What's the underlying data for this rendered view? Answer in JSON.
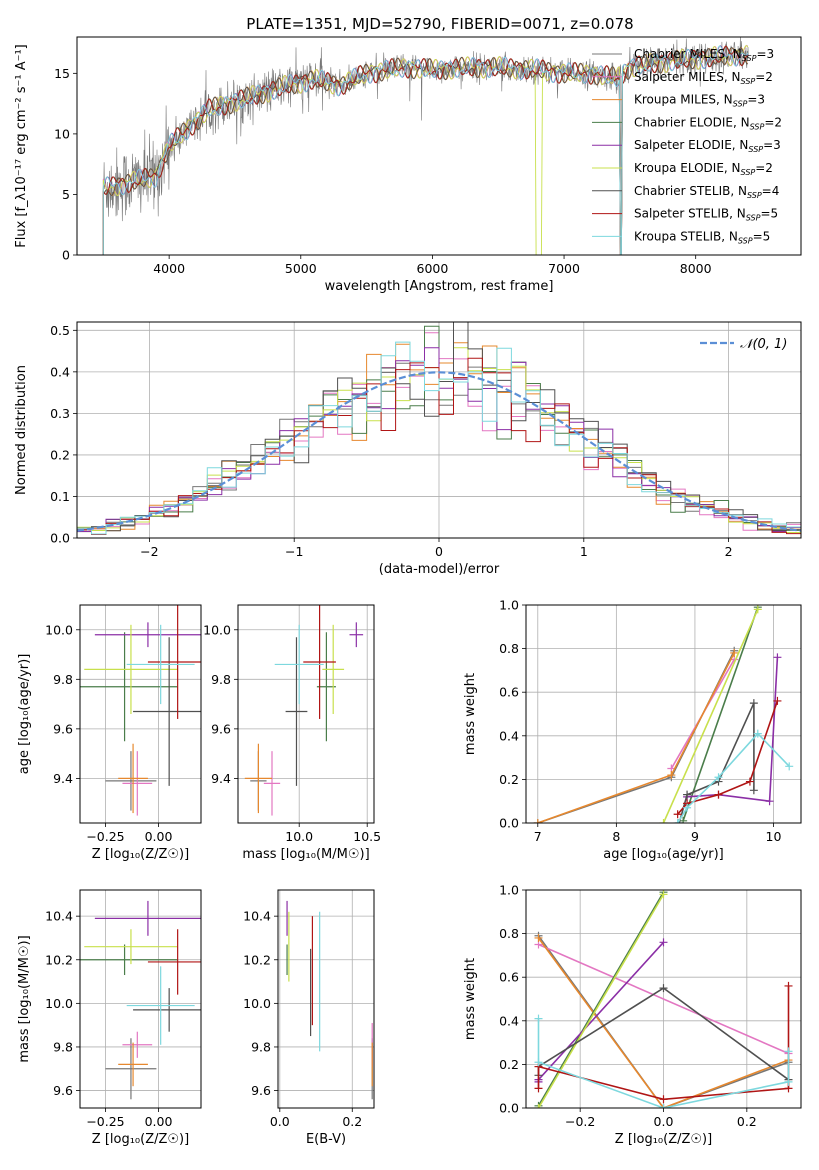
{
  "title": "PLATE=1351, MJD=52790, FIBERID=0071, z=0.078",
  "colors": [
    "#777777",
    "#e377c2",
    "#e6882e",
    "#4a7d4a",
    "#8b2fa6",
    "#c8e04c",
    "#505050",
    "#b01515",
    "#7dd8de"
  ],
  "chart_data": [
    {
      "type": "line",
      "id": "spectrum",
      "xlabel": "wavelength [Angstrom, rest frame]",
      "ylabel": "Flux [f_λ10⁻¹⁷ erg cm⁻² s⁻¹ A⁻¹]",
      "xlim": [
        3300,
        8800
      ],
      "ylim": [
        0,
        18
      ],
      "xticks": [
        "4000",
        "5000",
        "6000",
        "7000",
        "8000"
      ],
      "xtick_values": [
        4000,
        5000,
        6000,
        7000,
        8000
      ],
      "yticks": [
        "0",
        "5",
        "10",
        "15"
      ],
      "ytick_values": [
        0,
        5,
        10,
        15
      ],
      "grid": false,
      "legend": "upper-right",
      "series": [
        {
          "name": "Chabrier MILES, N_SSP=3"
        },
        {
          "name": "Salpeter MILES, N_SSP=2"
        },
        {
          "name": "Kroupa MILES, N_SSP=3"
        },
        {
          "name": "Chabrier ELODIE, N_SSP=2"
        },
        {
          "name": "Salpeter ELODIE, N_SSP=3"
        },
        {
          "name": "Kroupa ELODIE, N_SSP=2"
        },
        {
          "name": "Chabrier STELIB, N_SSP=4"
        },
        {
          "name": "Salpeter STELIB, N_SSP=5"
        },
        {
          "name": "Kroupa STELIB, N_SSP=5"
        }
      ],
      "legend_labels": [
        [
          "Chabrier MILES, N",
          "SSP",
          "=3"
        ],
        [
          "Salpeter MILES, N",
          "SSP",
          "=2"
        ],
        [
          "Kroupa MILES, N",
          "SSP",
          "=3"
        ],
        [
          "Chabrier ELODIE, N",
          "SSP",
          "=2"
        ],
        [
          "Salpeter ELODIE, N",
          "SSP",
          "=3"
        ],
        [
          "Kroupa ELODIE, N",
          "SSP",
          "=2"
        ],
        [
          "Chabrier STELIB, N",
          "SSP",
          "=4"
        ],
        [
          "Salpeter STELIB, N",
          "SSP",
          "=5"
        ],
        [
          "Kroupa STELIB, N",
          "SSP",
          "=5"
        ]
      ],
      "continuum_knots": [
        [
          3500,
          5.5
        ],
        [
          3700,
          6.0
        ],
        [
          3900,
          6.5
        ],
        [
          4000,
          9.0
        ],
        [
          4300,
          12.0
        ],
        [
          4600,
          13.0
        ],
        [
          4900,
          14.0
        ],
        [
          5100,
          14.5
        ],
        [
          5300,
          14.0
        ],
        [
          5500,
          15.0
        ],
        [
          5800,
          15.5
        ],
        [
          6000,
          15.3
        ],
        [
          6300,
          15.5
        ],
        [
          6500,
          15.5
        ],
        [
          6800,
          15.3
        ],
        [
          7000,
          15.0
        ],
        [
          7200,
          15.0
        ],
        [
          7400,
          14.6
        ],
        [
          7500,
          15.5
        ],
        [
          7800,
          16.0
        ],
        [
          8300,
          16.5
        ]
      ]
    },
    {
      "type": "histogram",
      "id": "residuals",
      "xlabel": "(data-model)/error",
      "ylabel": "Normed distribution",
      "xlim": [
        -2.5,
        2.5
      ],
      "ylim": [
        0,
        0.52
      ],
      "xticks": [
        "−2",
        "−1",
        "0",
        "1",
        "2"
      ],
      "xtick_values": [
        -2,
        -1,
        0,
        1,
        2
      ],
      "yticks": [
        "0.0",
        "0.1",
        "0.2",
        "0.3",
        "0.4",
        "0.5"
      ],
      "ytick_values": [
        0,
        0.1,
        0.2,
        0.3,
        0.4,
        0.5
      ],
      "grid": true,
      "legend": "upper-right",
      "reference_label": "𝒩(0, 1)",
      "bin_width": 0.1
    },
    {
      "type": "errorbar",
      "id": "age-vs-z",
      "xlabel": "Z [log₁₀(Z/Z☉)]",
      "ylabel": "age  [log₁₀(age/yr)]",
      "xlim": [
        -0.37,
        0.2
      ],
      "ylim": [
        9.22,
        10.1
      ],
      "xticks": [
        "−0.25",
        "0.00"
      ],
      "xtick_values": [
        -0.25,
        0.0
      ],
      "yticks": [
        "9.4",
        "9.6",
        "9.8",
        "10.0"
      ],
      "ytick_values": [
        9.4,
        9.6,
        9.8,
        10.0
      ],
      "grid": true,
      "points": [
        {
          "x": -0.13,
          "xerr": 0.12,
          "y": 9.39,
          "yerr": 0.12,
          "c": 0
        },
        {
          "x": -0.1,
          "xerr": 0.07,
          "y": 9.38,
          "yerr": 0.13,
          "c": 1
        },
        {
          "x": -0.12,
          "xerr": 0.07,
          "y": 9.4,
          "yerr": 0.14,
          "c": 2
        },
        {
          "x": -0.16,
          "xerr": 0.25,
          "y": 9.77,
          "yerr": 0.22,
          "c": 3
        },
        {
          "x": -0.05,
          "xerr": 0.25,
          "y": 9.98,
          "yerr": 0.05,
          "c": 4
        },
        {
          "x": -0.13,
          "xerr": 0.22,
          "y": 9.84,
          "yerr": 0.18,
          "c": 5
        },
        {
          "x": 0.05,
          "xerr": 0.17,
          "y": 9.67,
          "yerr": 0.3,
          "c": 6
        },
        {
          "x": 0.09,
          "xerr": 0.14,
          "y": 9.87,
          "yerr": 0.23,
          "c": 7
        },
        {
          "x": 0.01,
          "xerr": 0.16,
          "y": 9.86,
          "yerr": 0.16,
          "c": 8
        }
      ]
    },
    {
      "type": "errorbar",
      "id": "age-vs-mass",
      "xlabel": "mass [log₁₀(M/M☉)]",
      "ylabel": "",
      "xlim": [
        9.55,
        10.55
      ],
      "ylim": [
        9.22,
        10.1
      ],
      "xticks": [
        "10.0",
        "10.5"
      ],
      "xtick_values": [
        10.0,
        10.5
      ],
      "yticks": [
        "9.4",
        "9.6",
        "9.8",
        "10.0"
      ],
      "ytick_values": [
        9.4,
        9.6,
        9.8,
        10.0
      ],
      "grid": true,
      "points": [
        {
          "x": 9.7,
          "xerr": 0.06,
          "y": 9.39,
          "yerr": 0.12,
          "c": 0
        },
        {
          "x": 9.8,
          "xerr": 0.06,
          "y": 9.38,
          "yerr": 0.13,
          "c": 1
        },
        {
          "x": 9.7,
          "xerr": 0.1,
          "y": 9.4,
          "yerr": 0.14,
          "c": 2
        },
        {
          "x": 10.2,
          "xerr": 0.07,
          "y": 9.77,
          "yerr": 0.22,
          "c": 3
        },
        {
          "x": 10.42,
          "xerr": 0.05,
          "y": 9.98,
          "yerr": 0.05,
          "c": 4
        },
        {
          "x": 10.25,
          "xerr": 0.08,
          "y": 9.84,
          "yerr": 0.18,
          "c": 5
        },
        {
          "x": 9.98,
          "xerr": 0.08,
          "y": 9.67,
          "yerr": 0.3,
          "c": 6
        },
        {
          "x": 10.15,
          "xerr": 0.12,
          "y": 9.87,
          "yerr": 0.23,
          "c": 7
        },
        {
          "x": 10.0,
          "xerr": 0.18,
          "y": 9.86,
          "yerr": 0.16,
          "c": 8
        }
      ]
    },
    {
      "type": "line",
      "id": "weight-vs-age",
      "xlabel": "age  [log₁₀(age/yr)]",
      "ylabel": "mass weight",
      "xlim": [
        6.85,
        10.35
      ],
      "ylim": [
        0,
        1.0
      ],
      "xticks": [
        "7",
        "8",
        "9",
        "10"
      ],
      "xtick_values": [
        7,
        8,
        9,
        10
      ],
      "yticks": [
        "0.0",
        "0.2",
        "0.4",
        "0.6",
        "0.8",
        "1.0"
      ],
      "ytick_values": [
        0,
        0.2,
        0.4,
        0.6,
        0.8,
        1.0
      ],
      "grid": true,
      "marker": "+",
      "series": [
        {
          "c": 0,
          "points": [
            [
              7.0,
              0.0
            ],
            [
              8.7,
              0.21
            ],
            [
              9.5,
              0.79
            ]
          ]
        },
        {
          "c": 1,
          "points": [
            [
              8.7,
              0.25
            ],
            [
              9.5,
              0.75
            ]
          ]
        },
        {
          "c": 2,
          "points": [
            [
              7.0,
              0.0
            ],
            [
              8.7,
              0.22
            ],
            [
              9.5,
              0.78
            ]
          ]
        },
        {
          "c": 3,
          "points": [
            [
              8.85,
              0.01
            ],
            [
              9.8,
              0.99
            ]
          ]
        },
        {
          "c": 4,
          "points": [
            [
              8.9,
              0.12
            ],
            [
              9.3,
              0.13
            ],
            [
              9.95,
              0.1
            ],
            [
              10.05,
              0.76
            ]
          ]
        },
        {
          "c": 5,
          "points": [
            [
              8.6,
              0.0
            ],
            [
              9.8,
              0.98
            ]
          ]
        },
        {
          "c": 6,
          "points": [
            [
              8.8,
              0.0
            ],
            [
              8.9,
              0.13
            ],
            [
              9.3,
              0.19
            ],
            [
              9.75,
              0.55
            ],
            [
              9.75,
              0.15
            ]
          ]
        },
        {
          "c": 7,
          "points": [
            [
              8.78,
              0.04
            ],
            [
              8.9,
              0.09
            ],
            [
              9.3,
              0.13
            ],
            [
              9.7,
              0.19
            ],
            [
              10.05,
              0.56
            ]
          ]
        },
        {
          "c": 8,
          "points": [
            [
              8.78,
              0.0
            ],
            [
              8.9,
              0.07
            ],
            [
              9.3,
              0.21
            ],
            [
              9.8,
              0.41
            ],
            [
              10.2,
              0.26
            ]
          ]
        }
      ]
    },
    {
      "type": "errorbar",
      "id": "mass-vs-z",
      "xlabel": "Z [log₁₀(Z/Z☉)]",
      "ylabel": "mass [log₁₀(M/M☉)]",
      "xlim": [
        -0.37,
        0.2
      ],
      "ylim": [
        9.52,
        10.52
      ],
      "xticks": [
        "−0.25",
        "0.00"
      ],
      "xtick_values": [
        -0.25,
        0.0
      ],
      "yticks": [
        "9.6",
        "9.8",
        "10.0",
        "10.2",
        "10.4"
      ],
      "ytick_values": [
        9.6,
        9.8,
        10.0,
        10.2,
        10.4
      ],
      "grid": true,
      "points": [
        {
          "x": -0.13,
          "xerr": 0.12,
          "y": 9.7,
          "yerr": 0.14,
          "c": 0
        },
        {
          "x": -0.1,
          "xerr": 0.07,
          "y": 9.81,
          "yerr": 0.06,
          "c": 1
        },
        {
          "x": -0.12,
          "xerr": 0.07,
          "y": 9.72,
          "yerr": 0.1,
          "c": 2
        },
        {
          "x": -0.16,
          "xerr": 0.25,
          "y": 10.2,
          "yerr": 0.07,
          "c": 3
        },
        {
          "x": -0.05,
          "xerr": 0.25,
          "y": 10.39,
          "yerr": 0.08,
          "c": 4
        },
        {
          "x": -0.13,
          "xerr": 0.22,
          "y": 10.26,
          "yerr": 0.08,
          "c": 5
        },
        {
          "x": 0.05,
          "xerr": 0.17,
          "y": 9.97,
          "yerr": 0.1,
          "c": 6
        },
        {
          "x": 0.09,
          "xerr": 0.14,
          "y": 10.19,
          "yerr": 0.15,
          "c": 7
        },
        {
          "x": 0.01,
          "xerr": 0.16,
          "y": 9.99,
          "yerr": 0.18,
          "c": 8
        }
      ]
    },
    {
      "type": "errorbar",
      "id": "mass-vs-ebv",
      "xlabel": "E(B-V)",
      "ylabel": "",
      "xlim": [
        -0.005,
        0.26
      ],
      "ylim": [
        9.52,
        10.52
      ],
      "xticks": [
        "0.0",
        "0.2"
      ],
      "xtick_values": [
        0.0,
        0.2
      ],
      "yticks": [
        "9.6",
        "9.8",
        "10.0",
        "10.2",
        "10.4"
      ],
      "ytick_values": [
        9.6,
        9.8,
        10.0,
        10.2,
        10.4
      ],
      "grid": true,
      "points": [
        {
          "x": 0.255,
          "y": 9.7,
          "yerr": 0.14,
          "c": 0
        },
        {
          "x": 0.255,
          "y": 9.81,
          "yerr": 0.1,
          "c": 1
        },
        {
          "x": 0.255,
          "y": 9.72,
          "yerr": 0.1,
          "c": 2
        },
        {
          "x": 0.02,
          "y": 10.2,
          "yerr": 0.07,
          "c": 3
        },
        {
          "x": 0.02,
          "y": 10.39,
          "yerr": 0.08,
          "c": 4
        },
        {
          "x": 0.025,
          "y": 10.26,
          "yerr": 0.16,
          "c": 5
        },
        {
          "x": 0.085,
          "y": 10.05,
          "yerr": 0.2,
          "c": 6
        },
        {
          "x": 0.09,
          "y": 10.15,
          "yerr": 0.25,
          "c": 7
        },
        {
          "x": 0.11,
          "y": 10.1,
          "yerr": 0.32,
          "c": 8
        }
      ]
    },
    {
      "type": "line",
      "id": "weight-vs-z",
      "xlabel": "Z [log₁₀(Z/Z☉)]",
      "ylabel": "mass weight",
      "xlim": [
        -0.33,
        0.33
      ],
      "ylim": [
        0,
        1.0
      ],
      "xticks": [
        "−0.2",
        "0.0",
        "0.2"
      ],
      "xtick_values": [
        -0.2,
        0.0,
        0.2
      ],
      "yticks": [
        "0.0",
        "0.2",
        "0.4",
        "0.6",
        "0.8",
        "1.0"
      ],
      "ytick_values": [
        0,
        0.2,
        0.4,
        0.6,
        0.8,
        1.0
      ],
      "grid": true,
      "marker": "+",
      "series": [
        {
          "c": 0,
          "points": [
            [
              -0.3,
              0.79
            ],
            [
              0.0,
              0.0
            ],
            [
              0.3,
              0.21
            ]
          ]
        },
        {
          "c": 1,
          "points": [
            [
              -0.3,
              0.75
            ],
            [
              0.3,
              0.25
            ]
          ]
        },
        {
          "c": 2,
          "points": [
            [
              -0.3,
              0.78
            ],
            [
              0.0,
              0.0
            ],
            [
              0.3,
              0.22
            ]
          ]
        },
        {
          "c": 3,
          "points": [
            [
              -0.3,
              0.01
            ],
            [
              0.0,
              0.99
            ]
          ]
        },
        {
          "c": 4,
          "points": [
            [
              -0.3,
              0.12
            ],
            [
              -0.3,
              0.13
            ],
            [
              0.0,
              0.76
            ]
          ]
        },
        {
          "c": 5,
          "points": [
            [
              -0.3,
              0.0
            ],
            [
              0.0,
              0.98
            ]
          ]
        },
        {
          "c": 6,
          "points": [
            [
              -0.3,
              0.15
            ],
            [
              -0.3,
              0.19
            ],
            [
              0.0,
              0.55
            ],
            [
              0.3,
              0.13
            ]
          ]
        },
        {
          "c": 7,
          "points": [
            [
              -0.3,
              0.09
            ],
            [
              -0.3,
              0.19
            ],
            [
              0.0,
              0.04
            ],
            [
              0.3,
              0.09
            ],
            [
              0.3,
              0.56
            ]
          ]
        },
        {
          "c": 8,
          "points": [
            [
              -0.3,
              0.41
            ],
            [
              -0.3,
              0.21
            ],
            [
              0.0,
              0.0
            ],
            [
              0.3,
              0.12
            ],
            [
              0.3,
              0.26
            ]
          ]
        }
      ]
    }
  ]
}
